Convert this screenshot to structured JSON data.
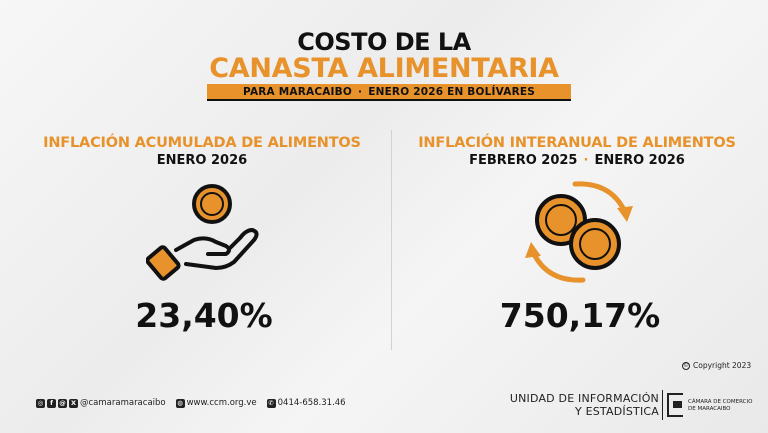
{
  "header": {
    "title_line1": "COSTO DE LA",
    "title_line2": "CANASTA ALIMENTARIA",
    "subtitle_left": "PARA MARACAIBO",
    "subtitle_sep": "·",
    "subtitle_right": "ENERO 2026 EN BOLÍVARES"
  },
  "left": {
    "heading": "INFLACIÓN ACUMULADA DE ALIMENTOS",
    "period": "ENERO 2026",
    "value": "23,40%",
    "icon": "hand-coin-icon"
  },
  "right": {
    "heading": "INFLACIÓN INTERANUAL DE ALIMENTOS",
    "period_from": "FEBRERO 2025",
    "period_sep": "·",
    "period_to": "ENERO 2026",
    "value": "750,17%",
    "icon": "coins-cycle-icon"
  },
  "copyright": "Copyright 2023",
  "footer": {
    "social_handle": "@camaramaracaibo",
    "website": "www.ccm.org.ve",
    "phone": "0414-658.31.46",
    "unit_line1": "UNIDAD DE INFORMACIÓN",
    "unit_line2": "Y ESTADÍSTICA",
    "org_line1": "CÁMARA DE COMERCIO",
    "org_line2": "DE MARACAIBO"
  },
  "colors": {
    "accent": "#e8922b",
    "text": "#111111"
  }
}
